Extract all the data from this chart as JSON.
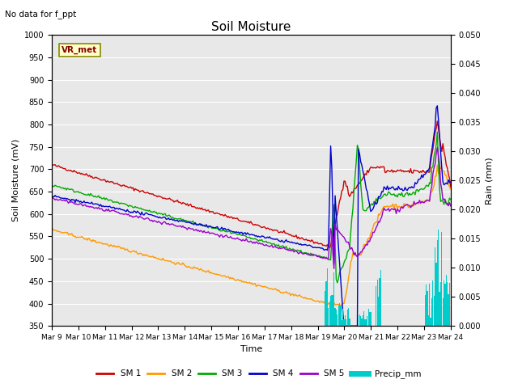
{
  "title": "Soil Moisture",
  "subtitle": "No data for f_ppt",
  "xlabel": "Time",
  "ylabel_left": "Soil Moisture (mV)",
  "ylabel_right": "Rain (mm)",
  "ylim_left": [
    350,
    1000
  ],
  "ylim_right": [
    0.0,
    0.05
  ],
  "yticks_left": [
    350,
    400,
    450,
    500,
    550,
    600,
    650,
    700,
    750,
    800,
    850,
    900,
    950,
    1000
  ],
  "yticks_right": [
    0.0,
    0.005,
    0.01,
    0.015,
    0.02,
    0.025,
    0.03,
    0.035,
    0.04,
    0.045,
    0.05
  ],
  "xtick_labels": [
    "Mar 9",
    "Mar 10",
    "Mar 11",
    "Mar 12",
    "Mar 13",
    "Mar 14",
    "Mar 15",
    "Mar 16",
    "Mar 17",
    "Mar 18",
    "Mar 19",
    "Mar 20",
    "Mar 21",
    "Mar 22",
    "Mar 23",
    "Mar 24"
  ],
  "num_days": 16,
  "background_color": "#e8e8e8",
  "vr_met_label": "VR_met",
  "line_colors": {
    "SM 1": "#cc0000",
    "SM 2": "#ff9900",
    "SM 3": "#00aa00",
    "SM 4": "#0000cc",
    "SM 5": "#9900cc",
    "Precip_mm": "#00cccc"
  }
}
